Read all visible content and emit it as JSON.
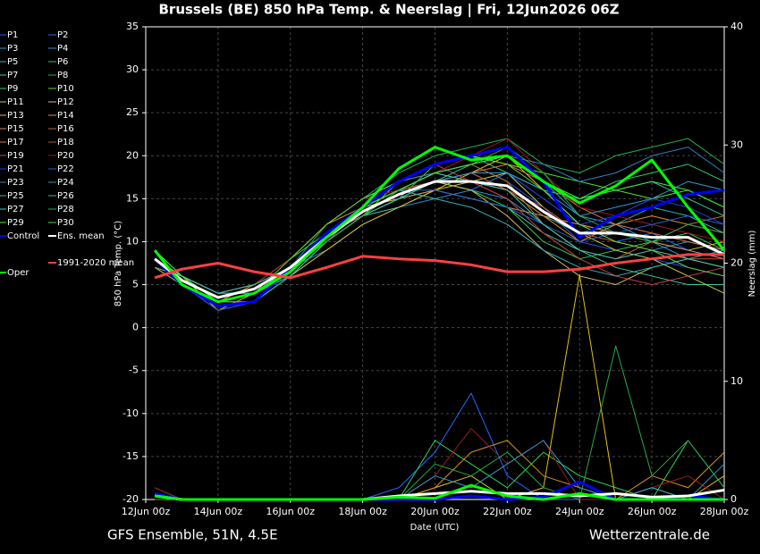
{
  "chart_data": {
    "type": "line",
    "title": "Brussels  (BE)  850 hPa Temp. & Neerslag | Fri, 12Jun2026 06Z",
    "xlabel": "Date (UTC)",
    "ylabel": "850 hPa Temp. (°C)",
    "y2label": "Neerslag (mm)",
    "footer_left": "GFS Ensemble, 51N, 4.5E",
    "footer_right": "Wetterzentrale.de",
    "xlim": [
      0,
      16
    ],
    "xticks": [
      {
        "value": 0,
        "label": "12Jun 00z"
      },
      {
        "value": 2,
        "label": "14Jun 00z"
      },
      {
        "value": 4,
        "label": "16Jun 00z"
      },
      {
        "value": 6,
        "label": "18Jun 00z"
      },
      {
        "value": 8,
        "label": "20Jun 00z"
      },
      {
        "value": 10,
        "label": "22Jun 00z"
      },
      {
        "value": 12,
        "label": "24Jun 00z"
      },
      {
        "value": 14,
        "label": "26Jun 00z"
      },
      {
        "value": 16,
        "label": "28Jun 00z"
      }
    ],
    "ylim": [
      -20,
      35
    ],
    "yticks": [
      -20,
      -15,
      -10,
      -5,
      0,
      5,
      10,
      15,
      20,
      25,
      30,
      35
    ],
    "y2lim": [
      0,
      40
    ],
    "y2ticks": [
      0,
      10,
      20,
      30,
      40
    ],
    "grid": true,
    "x": [
      0.25,
      1,
      2,
      3,
      4,
      5,
      6,
      7,
      8,
      9,
      10,
      11,
      12,
      13,
      14,
      15,
      16
    ],
    "series": [
      {
        "name": "P1",
        "color": "#3050ff",
        "values": [
          8,
          6,
          3,
          4,
          7,
          11,
          14,
          16,
          18,
          19,
          17,
          14,
          10,
          9,
          8,
          7,
          6
        ]
      },
      {
        "name": "P2",
        "color": "#1e6cff",
        "values": [
          7,
          5,
          2,
          3,
          6,
          10,
          13,
          15,
          17,
          16,
          18,
          15,
          12,
          10,
          11,
          9,
          8
        ],
        "precip": [
          0.5,
          0,
          0,
          0,
          0,
          0,
          0,
          1,
          4,
          9,
          2,
          0,
          0,
          0,
          1,
          0,
          0
        ]
      },
      {
        "name": "P3",
        "color": "#2aa0c8",
        "values": [
          8,
          6,
          4,
          5,
          8,
          12,
          15,
          17,
          18,
          19,
          20,
          17,
          13,
          12,
          10,
          8,
          7
        ]
      },
      {
        "name": "P4",
        "color": "#2a8fd0",
        "values": [
          7,
          5,
          3,
          5,
          7,
          9,
          12,
          14,
          15,
          16,
          15,
          12,
          9,
          8,
          9,
          10,
          9
        ]
      },
      {
        "name": "P5",
        "color": "#30b0b0",
        "values": [
          8,
          6,
          4,
          4,
          6,
          10,
          14,
          16,
          17,
          18,
          16,
          13,
          11,
          12,
          14,
          13,
          11
        ]
      },
      {
        "name": "P6",
        "color": "#30c070",
        "values": [
          9,
          6,
          3,
          4,
          7,
          11,
          13,
          15,
          19,
          20,
          18,
          16,
          15,
          17,
          18,
          19,
          17
        ]
      },
      {
        "name": "P7",
        "color": "#40c8a0",
        "values": [
          8,
          5,
          2,
          3,
          6,
          10,
          13,
          14,
          16,
          15,
          14,
          11,
          9,
          7,
          6,
          5,
          5
        ]
      },
      {
        "name": "P8",
        "color": "#20b050",
        "values": [
          8,
          6,
          3,
          4,
          7,
          12,
          15,
          18,
          20,
          21,
          22,
          19,
          18,
          20,
          21,
          22,
          19
        ]
      },
      {
        "name": "P9",
        "color": "#30d050",
        "values": [
          9,
          6,
          4,
          5,
          8,
          11,
          14,
          16,
          17,
          16,
          14,
          10,
          8,
          9,
          10,
          11,
          9
        ],
        "precip": [
          1,
          0,
          0,
          0,
          0,
          0,
          0,
          0,
          5,
          3,
          1,
          4,
          2,
          1,
          0,
          5,
          1
        ]
      },
      {
        "name": "P10",
        "color": "#50e020",
        "values": [
          8,
          6,
          3,
          3,
          6,
          10,
          13,
          17,
          19,
          20,
          19,
          18,
          17,
          16,
          15,
          16,
          14
        ]
      },
      {
        "name": "P11",
        "color": "#c8d040",
        "values": [
          7,
          6,
          4,
          4,
          7,
          11,
          14,
          15,
          16,
          17,
          18,
          14,
          11,
          9,
          8,
          6,
          4
        ]
      },
      {
        "name": "P12",
        "color": "#d8c060",
        "values": [
          8,
          5,
          3,
          4,
          7,
          10,
          13,
          15,
          17,
          16,
          13,
          9,
          6,
          5,
          7,
          8,
          7
        ]
      },
      {
        "name": "P13",
        "color": "#e0c020",
        "values": [
          8,
          6,
          2,
          4,
          6,
          9,
          12,
          14,
          16,
          18,
          20,
          16,
          12,
          11,
          10,
          9,
          10
        ],
        "precip": [
          0,
          0,
          0,
          0,
          0,
          0,
          0,
          0,
          1,
          2,
          0,
          1,
          19,
          0,
          1,
          0,
          2
        ]
      },
      {
        "name": "P14",
        "color": "#e09020",
        "values": [
          7,
          5,
          3,
          5,
          8,
          12,
          14,
          17,
          18,
          17,
          16,
          13,
          10,
          12,
          13,
          12,
          11
        ],
        "precip": [
          0,
          0,
          0,
          0,
          0,
          0,
          0,
          0,
          1,
          4,
          5,
          2,
          1,
          0,
          2,
          1,
          4
        ]
      },
      {
        "name": "P15",
        "color": "#d09060",
        "values": [
          8,
          6,
          4,
          4,
          6,
          10,
          13,
          15,
          16,
          15,
          14,
          13,
          12,
          11,
          10,
          9,
          8
        ]
      },
      {
        "name": "P16",
        "color": "#b07030",
        "values": [
          9,
          6,
          3,
          4,
          7,
          11,
          14,
          16,
          18,
          19,
          17,
          12,
          9,
          8,
          10,
          12,
          13
        ]
      },
      {
        "name": "P17",
        "color": "#e07040",
        "values": [
          8,
          6,
          3,
          4,
          7,
          11,
          13,
          16,
          17,
          18,
          19,
          17,
          14,
          12,
          11,
          10,
          9
        ]
      },
      {
        "name": "P18",
        "color": "#c05030",
        "values": [
          8,
          5,
          3,
          4,
          7,
          10,
          14,
          16,
          17,
          18,
          16,
          14,
          11,
          10,
          9,
          8,
          8
        ]
      },
      {
        "name": "P19",
        "color": "#d04040",
        "values": [
          7,
          6,
          3,
          3,
          7,
          11,
          14,
          17,
          19,
          17,
          15,
          11,
          8,
          6,
          5,
          6,
          7
        ]
      },
      {
        "name": "P20",
        "color": "#a01818",
        "values": [
          8,
          6,
          4,
          5,
          8,
          12,
          15,
          16,
          18,
          20,
          22,
          18,
          14,
          13,
          12,
          11,
          10
        ],
        "precip": [
          1,
          0,
          0,
          0,
          0,
          0,
          0,
          0,
          2,
          6,
          3,
          5,
          0,
          0,
          1,
          2,
          0
        ]
      },
      {
        "name": "P21",
        "color": "#2040e0",
        "values": [
          8,
          5,
          2,
          3,
          6,
          10,
          13,
          15,
          17,
          18,
          18,
          15,
          12,
          13,
          15,
          14,
          12
        ]
      },
      {
        "name": "P22",
        "color": "#2060d0",
        "values": [
          8,
          6,
          3,
          4,
          7,
          11,
          14,
          16,
          16,
          15,
          14,
          12,
          10,
          11,
          12,
          13,
          12
        ]
      },
      {
        "name": "P23",
        "color": "#3080c0",
        "values": [
          9,
          6,
          3,
          4,
          7,
          11,
          14,
          17,
          18,
          19,
          20,
          19,
          17,
          18,
          20,
          21,
          18
        ]
      },
      {
        "name": "P24",
        "color": "#3098c8",
        "values": [
          8,
          6,
          4,
          4,
          6,
          10,
          13,
          15,
          17,
          18,
          18,
          16,
          13,
          14,
          15,
          17,
          16
        ],
        "precip": [
          0,
          0,
          0,
          0,
          0,
          0,
          0,
          0,
          2,
          1,
          3,
          5,
          1,
          0,
          1,
          0,
          3
        ]
      },
      {
        "name": "P25",
        "color": "#30b8b8",
        "values": [
          8,
          5,
          3,
          4,
          7,
          11,
          14,
          16,
          15,
          14,
          12,
          9,
          7,
          6,
          7,
          8,
          9
        ]
      },
      {
        "name": "P26",
        "color": "#30c090",
        "values": [
          7,
          6,
          3,
          3,
          6,
          10,
          13,
          15,
          17,
          19,
          20,
          17,
          15,
          16,
          17,
          15,
          13
        ]
      },
      {
        "name": "P27",
        "color": "#40c8b0",
        "values": [
          8,
          6,
          4,
          5,
          7,
          11,
          14,
          16,
          18,
          17,
          16,
          12,
          9,
          8,
          9,
          8,
          7
        ]
      },
      {
        "name": "P28",
        "color": "#28a848",
        "values": [
          8,
          5,
          3,
          4,
          7,
          10,
          13,
          16,
          18,
          19,
          21,
          18,
          13,
          11,
          10,
          12,
          11
        ],
        "precip": [
          0,
          0,
          0,
          0,
          0,
          0,
          0,
          0,
          3,
          2,
          4,
          1,
          0,
          13,
          2,
          5,
          1
        ]
      },
      {
        "name": "P29",
        "color": "#60e030",
        "values": [
          8,
          6,
          3,
          4,
          8,
          12,
          15,
          17,
          19,
          20,
          19,
          16,
          12,
          10,
          9,
          7,
          6
        ]
      },
      {
        "name": "P30",
        "color": "#40e040",
        "values": [
          9,
          6,
          3,
          4,
          7,
          11,
          14,
          16,
          18,
          19,
          20,
          17,
          15,
          16,
          17,
          16,
          14
        ]
      },
      {
        "name": "Control",
        "color": "#0000ff",
        "values": [
          8,
          5,
          2.5,
          3,
          7,
          11,
          14,
          17,
          19,
          20,
          21,
          17,
          10.5,
          13,
          14,
          15.5,
          16
        ],
        "precip": [
          0.5,
          0,
          0,
          0,
          0,
          0,
          0,
          0,
          0,
          0.3,
          0,
          0.2,
          1.5,
          0,
          0,
          0.3,
          0
        ]
      },
      {
        "name": "Ens. mean",
        "color": "#ffffff",
        "values": [
          8,
          5.5,
          3.5,
          4.5,
          7,
          10.5,
          13.5,
          15.5,
          17,
          17,
          16.5,
          13.5,
          11,
          11,
          10.5,
          10.5,
          8.5
        ],
        "precip": [
          0.3,
          0,
          0,
          0,
          0,
          0,
          0,
          0.3,
          0.5,
          0.7,
          0.5,
          0.5,
          0.3,
          0.5,
          0.2,
          0.3,
          0.8
        ]
      },
      {
        "name": "Oper",
        "color": "#00ff00",
        "values": [
          9,
          5,
          3,
          4,
          6.5,
          10.5,
          14,
          18.5,
          21,
          19.5,
          20,
          17,
          14.5,
          16.5,
          19.5,
          14,
          9
        ],
        "precip": [
          0.3,
          0,
          0,
          0,
          0,
          0,
          0,
          0.2,
          0.1,
          1.2,
          0.3,
          0,
          0.5,
          0,
          0,
          0,
          0
        ]
      },
      {
        "name": "1991-2020 mean",
        "color": "#ff4040",
        "values": [
          5.8,
          6.8,
          7.5,
          6.5,
          5.8,
          7,
          8.3,
          8,
          7.8,
          7.3,
          6.5,
          6.5,
          6.8,
          7.5,
          8,
          8.5,
          8.5
        ]
      }
    ]
  }
}
